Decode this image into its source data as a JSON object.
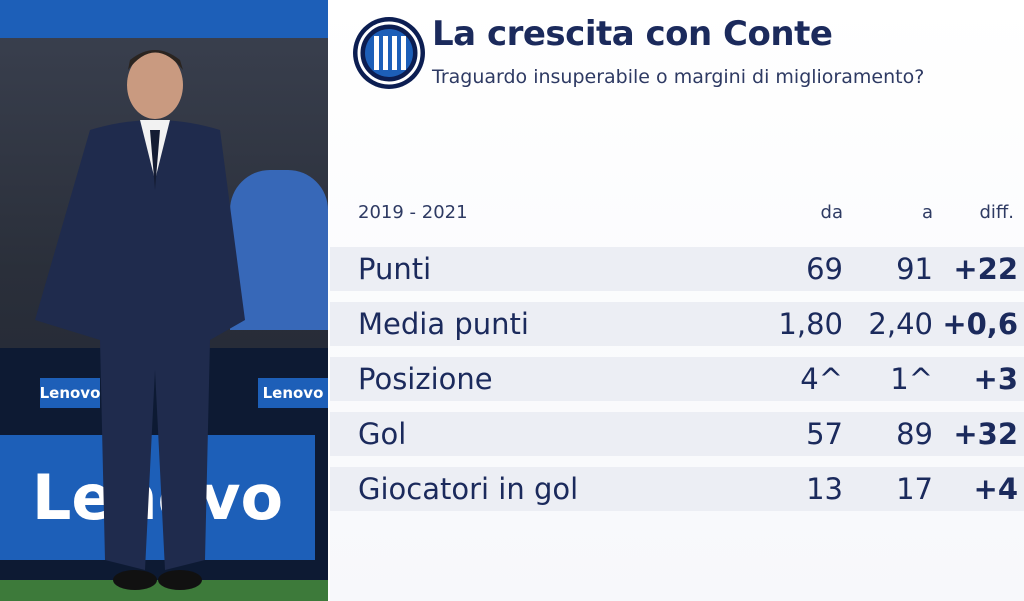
{
  "header": {
    "title": "La crescita con Conte",
    "subtitle": "Traguardo insuperabile o margini di miglioramento?"
  },
  "table": {
    "period": "2019 - 2021",
    "columns": [
      "da",
      "a",
      "diff."
    ],
    "rows": [
      [
        "Punti",
        "69",
        "91",
        "+22"
      ],
      [
        "Media punti",
        "1,80",
        "2,40",
        "+0,6"
      ],
      [
        "Posizione",
        "4^",
        "1^",
        "+3"
      ],
      [
        "Gol",
        "57",
        "89",
        "+32"
      ],
      [
        "Giocatori in gol",
        "13",
        "17",
        "+4"
      ]
    ]
  },
  "photo": {
    "sponsor": "Lenovo"
  }
}
